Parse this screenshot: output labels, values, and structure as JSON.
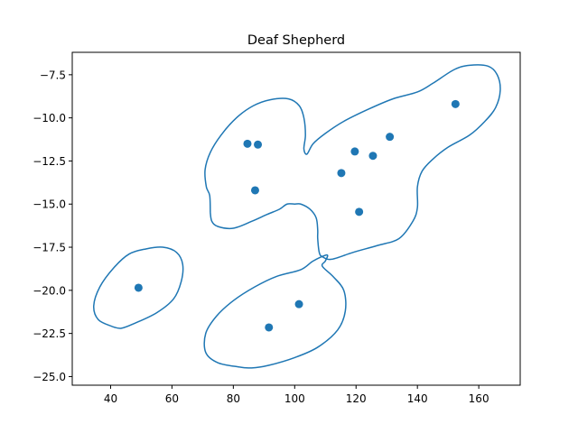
{
  "chart_data": {
    "type": "scatter",
    "title": "Deaf Shepherd",
    "xlabel": "",
    "ylabel": "",
    "xlim": [
      27.5,
      173.5
    ],
    "ylim": [
      -25.5,
      -6.2
    ],
    "xticks": [
      40,
      60,
      80,
      100,
      120,
      140,
      160
    ],
    "yticks": [
      -25.0,
      -22.5,
      -20.0,
      -17.5,
      -15.0,
      -12.5,
      -10.0,
      -7.5
    ],
    "xtick_labels": [
      "40",
      "60",
      "80",
      "100",
      "120",
      "140",
      "160"
    ],
    "ytick_labels": [
      "−25.0",
      "−22.5",
      "−20.0",
      "−17.5",
      "−15.0",
      "−12.5",
      "−10.0",
      "−7.5"
    ],
    "grid": false,
    "point_color": "#1f77b4",
    "points": [
      {
        "x": 49.1,
        "y": -19.85
      },
      {
        "x": 84.6,
        "y": -11.5
      },
      {
        "x": 88.0,
        "y": -11.55
      },
      {
        "x": 87.1,
        "y": -14.2
      },
      {
        "x": 115.2,
        "y": -13.2
      },
      {
        "x": 119.6,
        "y": -11.95
      },
      {
        "x": 125.5,
        "y": -12.2
      },
      {
        "x": 131.0,
        "y": -11.1
      },
      {
        "x": 121.0,
        "y": -15.45
      },
      {
        "x": 152.4,
        "y": -9.2
      },
      {
        "x": 101.4,
        "y": -20.8
      },
      {
        "x": 91.6,
        "y": -22.15
      }
    ],
    "contours": [
      {
        "name": "",
        "points": [
          [
            40.5,
            -22.1
          ],
          [
            36.0,
            -21.7
          ],
          [
            34.5,
            -20.9
          ],
          [
            36.5,
            -19.8
          ],
          [
            41.0,
            -18.7
          ],
          [
            46.0,
            -17.9
          ],
          [
            51.5,
            -17.6
          ],
          [
            57.0,
            -17.5
          ],
          [
            61.5,
            -17.8
          ],
          [
            63.5,
            -18.5
          ],
          [
            63.0,
            -19.5
          ],
          [
            60.5,
            -20.5
          ],
          [
            55.0,
            -21.3
          ],
          [
            48.0,
            -21.9
          ],
          [
            43.5,
            -22.2
          ],
          [
            40.5,
            -22.1
          ]
        ]
      },
      {
        "name": "",
        "points": [
          [
            82.0,
            -24.45
          ],
          [
            75.0,
            -24.2
          ],
          [
            71.0,
            -23.6
          ],
          [
            71.0,
            -22.5
          ],
          [
            74.5,
            -21.5
          ],
          [
            80.0,
            -20.6
          ],
          [
            87.0,
            -19.8
          ],
          [
            94.0,
            -19.2
          ],
          [
            102.0,
            -18.8
          ],
          [
            106.0,
            -18.3
          ],
          [
            110.5,
            -17.95
          ],
          [
            110.0,
            -18.3
          ],
          [
            109.0,
            -18.6
          ],
          [
            112.5,
            -19.2
          ],
          [
            116.0,
            -20.0
          ],
          [
            116.5,
            -21.2
          ],
          [
            114.0,
            -22.3
          ],
          [
            107.5,
            -23.3
          ],
          [
            100.0,
            -23.9
          ],
          [
            91.5,
            -24.35
          ],
          [
            86.0,
            -24.5
          ],
          [
            82.0,
            -24.45
          ]
        ]
      },
      {
        "name": "",
        "points": [
          [
            72.5,
            -15.5
          ],
          [
            72.3,
            -14.5
          ],
          [
            71.2,
            -14.0
          ],
          [
            70.8,
            -13.0
          ],
          [
            72.5,
            -12.0
          ],
          [
            76.0,
            -11.0
          ],
          [
            81.0,
            -10.0
          ],
          [
            86.5,
            -9.3
          ],
          [
            92.0,
            -8.95
          ],
          [
            98.0,
            -8.9
          ],
          [
            101.5,
            -9.3
          ],
          [
            103.0,
            -10.0
          ],
          [
            103.5,
            -11.0
          ],
          [
            103.0,
            -11.8
          ],
          [
            104.0,
            -12.1
          ],
          [
            106.0,
            -11.5
          ],
          [
            110.0,
            -10.9
          ],
          [
            116.0,
            -10.2
          ],
          [
            124.0,
            -9.5
          ],
          [
            132.0,
            -8.9
          ],
          [
            140.0,
            -8.5
          ],
          [
            145.0,
            -8.0
          ],
          [
            152.0,
            -7.2
          ],
          [
            157.0,
            -6.95
          ],
          [
            163.0,
            -7.0
          ],
          [
            166.0,
            -7.5
          ],
          [
            167.0,
            -8.4
          ],
          [
            165.5,
            -9.4
          ],
          [
            162.0,
            -10.2
          ],
          [
            157.0,
            -11.0
          ],
          [
            150.0,
            -11.7
          ],
          [
            145.0,
            -12.4
          ],
          [
            141.5,
            -13.1
          ],
          [
            140.0,
            -14.0
          ],
          [
            140.0,
            -15.2
          ],
          [
            138.5,
            -16.0
          ],
          [
            134.0,
            -17.0
          ],
          [
            127.0,
            -17.4
          ],
          [
            119.0,
            -17.8
          ],
          [
            112.0,
            -18.2
          ],
          [
            109.0,
            -18.05
          ],
          [
            108.0,
            -17.8
          ],
          [
            107.5,
            -17.0
          ],
          [
            107.5,
            -16.5
          ],
          [
            107.0,
            -15.8
          ],
          [
            105.0,
            -15.3
          ],
          [
            102.0,
            -15.0
          ],
          [
            100.0,
            -15.0
          ],
          [
            97.5,
            -15.0
          ],
          [
            95.0,
            -15.3
          ],
          [
            91.0,
            -15.6
          ],
          [
            86.0,
            -16.0
          ],
          [
            80.0,
            -16.4
          ],
          [
            75.0,
            -16.3
          ],
          [
            73.0,
            -16.0
          ],
          [
            72.5,
            -15.5
          ]
        ]
      }
    ]
  }
}
